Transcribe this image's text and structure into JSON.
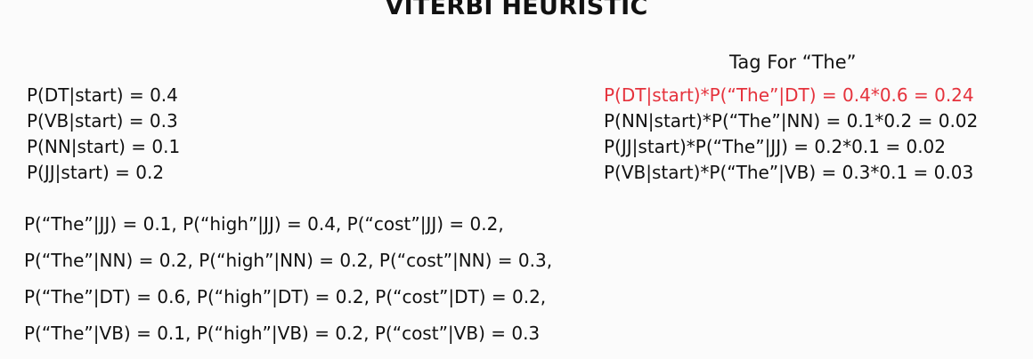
{
  "slide": {
    "title": "VITERBI HEURISTIC"
  },
  "priors": [
    "P(DT|start) = 0.4",
    "P(VB|start) = 0.3",
    "P(NN|start) = 0.1",
    "P(JJ|start) = 0.2"
  ],
  "tag_section": {
    "heading": "Tag For “The”",
    "lines": [
      "P(DT|start)*P(“The”|DT) = 0.4*0.6 = 0.24",
      "P(NN|start)*P(“The”|NN) = 0.1*0.2 = 0.02",
      "P(JJ|start)*P(“The”|JJ) = 0.2*0.1 = 0.02",
      "P(VB|start)*P(“The”|VB) = 0.3*0.1 = 0.03"
    ],
    "highlight_color": "#e5323c"
  },
  "emissions": [
    "P(“The”|JJ) = 0.1, P(“high”|JJ) = 0.4, P(“cost”|JJ) = 0.2,",
    "P(“The”|NN) = 0.2, P(“high”|NN) = 0.2, P(“cost”|NN) = 0.3,",
    "P(“The”|DT) = 0.6, P(“high”|DT)  = 0.2, P(“cost”|DT) = 0.2,",
    "P(“The”|VB) = 0.1, P(“high”|VB)  = 0.2, P(“cost”|VB) = 0.3"
  ]
}
